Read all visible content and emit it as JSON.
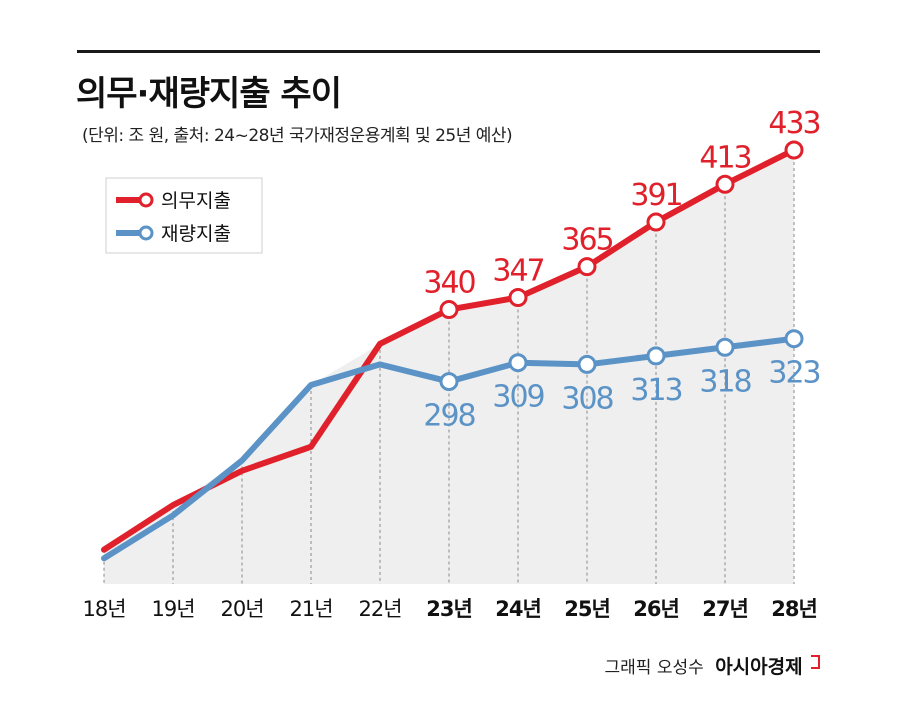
{
  "header": {
    "title": "의무·재량지출 추이",
    "subtitle": "(단위: 조 원, 출처: 24~28년 국가재정운용계획 및 25년 예산)"
  },
  "credit": {
    "label": "그래픽 오성수",
    "brand": "아시아경제"
  },
  "colors": {
    "mandatory": "#e0212b",
    "discretionary": "#5b93c7",
    "area": "#efefef",
    "grid": "#888888"
  },
  "chart_data": {
    "type": "line",
    "title": "의무·재량지출 추이",
    "categories": [
      "18년",
      "19년",
      "20년",
      "21년",
      "22년",
      "23년",
      "24년",
      "25년",
      "26년",
      "27년",
      "28년"
    ],
    "series": [
      {
        "name": "의무지출",
        "values": [
          200,
          226,
          246,
          260,
          320,
          340,
          347,
          365,
          391,
          413,
          433
        ],
        "labels": [
          null,
          null,
          null,
          null,
          null,
          "340",
          "347",
          "365",
          "391",
          "413",
          "433"
        ],
        "marker_from_index": 5
      },
      {
        "name": "재량지출",
        "values": [
          195,
          220,
          252,
          296,
          308,
          298,
          309,
          308,
          313,
          318,
          323
        ],
        "labels": [
          null,
          null,
          null,
          null,
          null,
          "298",
          "309",
          "308",
          "313",
          "318",
          "323"
        ],
        "marker_from_index": 5
      }
    ],
    "legend": "top-left",
    "grid": "vertical-dashed",
    "xlabel": "",
    "ylabel": ""
  }
}
